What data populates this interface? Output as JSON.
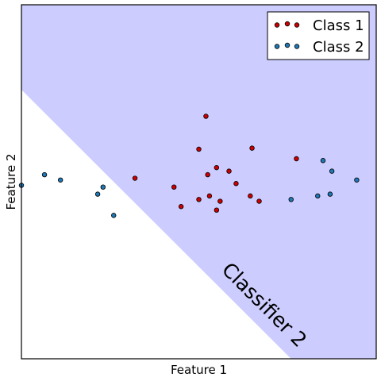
{
  "chart_data": {
    "type": "scatter",
    "title": "",
    "xlabel": "Feature 1",
    "ylabel": "Feature 2",
    "xlim": [
      0,
      10
    ],
    "ylim": [
      0,
      10
    ],
    "grid": false,
    "legend_position": "top-right",
    "colors": {
      "region": "#ccccff",
      "class1": "#cc0000",
      "class2": "#1f77b4",
      "marker_edge": "#000000"
    },
    "decision_boundary": {
      "label": "Classifier 2",
      "line": [
        [
          0,
          7.6
        ],
        [
          7.6,
          0
        ]
      ],
      "shaded_side": "upper-right"
    },
    "series": [
      {
        "name": "Class 1",
        "color": "#cc0000",
        "points": [
          [
            5.2,
            6.85
          ],
          [
            5.0,
            5.92
          ],
          [
            6.5,
            5.95
          ],
          [
            3.2,
            5.1
          ],
          [
            4.3,
            4.85
          ],
          [
            5.25,
            5.2
          ],
          [
            5.85,
            5.3
          ],
          [
            6.05,
            4.95
          ],
          [
            7.75,
            5.65
          ],
          [
            5.5,
            5.4
          ],
          [
            5.3,
            4.6
          ],
          [
            5.0,
            4.5
          ],
          [
            4.5,
            4.3
          ],
          [
            5.6,
            4.45
          ],
          [
            6.45,
            4.6
          ],
          [
            6.7,
            4.45
          ],
          [
            5.5,
            4.2
          ]
        ]
      },
      {
        "name": "Class 2",
        "color": "#1f77b4",
        "points": [
          [
            0.0,
            4.9
          ],
          [
            0.65,
            5.2
          ],
          [
            1.1,
            5.05
          ],
          [
            2.3,
            4.85
          ],
          [
            2.15,
            4.65
          ],
          [
            2.6,
            4.05
          ],
          [
            7.6,
            4.5
          ],
          [
            8.35,
            4.6
          ],
          [
            8.7,
            4.65
          ],
          [
            8.5,
            5.6
          ],
          [
            8.75,
            5.3
          ],
          [
            9.45,
            5.05
          ]
        ]
      }
    ]
  }
}
